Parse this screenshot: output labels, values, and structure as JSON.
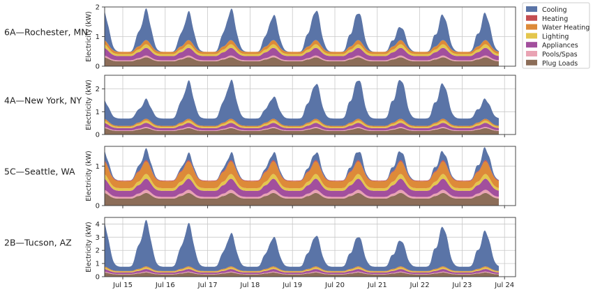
{
  "chart_data": {
    "type": "area",
    "stacked": true,
    "grid": true,
    "legend_placement": "top-right, outside plots",
    "x_ticks": [
      "Jul 15",
      "Jul 16",
      "Jul 17",
      "Jul 18",
      "Jul 19",
      "Jul 20",
      "Jul 21",
      "Jul 22",
      "Jul 23",
      "Jul 24"
    ],
    "x_start": "Jul 15",
    "x_end": "Jul 24",
    "ylabel": "Electricity (kW)",
    "legend": [
      {
        "key": "cooling",
        "name": "Cooling",
        "color": "#5a74a7"
      },
      {
        "key": "heating",
        "name": "Heating",
        "color": "#c44e52"
      },
      {
        "key": "water",
        "name": "Water Heating",
        "color": "#dd8a39"
      },
      {
        "key": "lighting",
        "name": "Lighting",
        "color": "#e4c64d"
      },
      {
        "key": "appliances",
        "name": "Appliances",
        "color": "#a24f9d"
      },
      {
        "key": "pools",
        "name": "Pools/Spas",
        "color": "#e9a3b3"
      },
      {
        "key": "plug",
        "name": "Plug Loads",
        "color": "#8c6d58"
      }
    ],
    "panels": [
      {
        "label": "6A—Rochester, MN",
        "ylim": [
          0,
          2
        ],
        "yticks": [
          0,
          1,
          2
        ],
        "daily_total_peak": [
          1.88,
          1.8,
          1.9,
          1.72,
          1.9,
          1.84,
          1.35,
          1.75,
          1.78
        ],
        "night_total_min": 0.45,
        "base_peak": {
          "plug": 0.3,
          "pools": 0.06,
          "appliances": 0.26,
          "lighting": 0.12,
          "water": 0.14,
          "heating": 0.0
        }
      },
      {
        "label": "4A—New York, NY",
        "ylim": [
          0,
          2.6
        ],
        "yticks": [
          0,
          1,
          2
        ],
        "daily_total_peak": [
          1.52,
          2.3,
          2.35,
          1.65,
          2.25,
          2.45,
          2.45,
          2.25,
          1.55
        ],
        "night_total_min": 0.7,
        "base_peak": {
          "plug": 0.28,
          "pools": 0.05,
          "appliances": 0.18,
          "lighting": 0.1,
          "water": 0.08,
          "heating": 0.0
        }
      },
      {
        "label": "5C—Seattle, WA",
        "ylim": [
          0,
          1.5
        ],
        "yticks": [
          0,
          1
        ],
        "daily_total_peak": [
          1.4,
          1.3,
          1.32,
          1.34,
          1.36,
          1.4,
          1.4,
          1.38,
          1.45
        ],
        "night_total_min": 0.45,
        "base_peak": {
          "plug": 0.32,
          "pools": 0.08,
          "appliances": 0.28,
          "lighting": 0.12,
          "water": 0.32,
          "heating": 0.03
        }
      },
      {
        "label": "2B—Tucson, AZ",
        "ylim": [
          0,
          4.5
        ],
        "yticks": [
          0,
          1,
          2,
          3,
          4
        ],
        "daily_total_peak": [
          4.15,
          3.95,
          3.25,
          3.0,
          3.15,
          3.1,
          2.8,
          3.8,
          3.45
        ],
        "night_total_min": 0.75,
        "base_peak": {
          "plug": 0.32,
          "pools": 0.06,
          "appliances": 0.2,
          "lighting": 0.12,
          "water": 0.08,
          "heating": 0.0
        }
      }
    ]
  }
}
